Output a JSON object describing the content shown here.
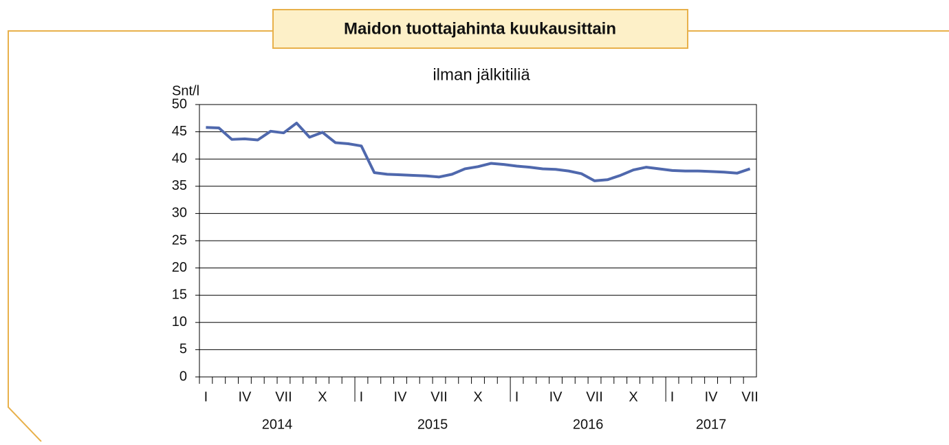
{
  "chart_data": {
    "type": "line",
    "title": "Maidon tuottajahinta kuukausittain",
    "subtitle": "ilman jälkitiliä",
    "y_label": "Snt/l",
    "categories": [
      "I",
      null,
      null,
      "IV",
      null,
      null,
      "VII",
      null,
      null,
      "X",
      null,
      null,
      "I",
      null,
      null,
      "IV",
      null,
      null,
      "VII",
      null,
      null,
      "X",
      null,
      null,
      "I",
      null,
      null,
      "IV",
      null,
      null,
      "VII",
      null,
      null,
      "X",
      null,
      null,
      "I",
      null,
      null,
      "IV",
      null,
      null,
      "VII"
    ],
    "x_groups": [
      "2014",
      "2015",
      "2016",
      "2017"
    ],
    "series": [
      {
        "name": "ilman jälkitiliä",
        "color": "#4f68ad",
        "values": [
          45.8,
          45.7,
          43.6,
          43.7,
          43.5,
          45.1,
          44.8,
          46.6,
          44.0,
          44.9,
          43.0,
          42.8,
          42.4,
          37.5,
          37.2,
          37.1,
          37.0,
          36.9,
          36.7,
          37.2,
          38.2,
          38.6,
          39.2,
          39.0,
          38.7,
          38.5,
          38.2,
          38.1,
          37.8,
          37.3,
          36.0,
          36.2,
          37.0,
          38.0,
          38.5,
          38.2,
          37.9,
          37.8,
          37.8,
          37.7,
          37.6,
          37.4,
          38.2
        ]
      }
    ],
    "ylim": [
      0,
      50
    ],
    "yticks": [
      0,
      5,
      10,
      15,
      20,
      25,
      30,
      35,
      40,
      45,
      50
    ],
    "grid": true
  }
}
